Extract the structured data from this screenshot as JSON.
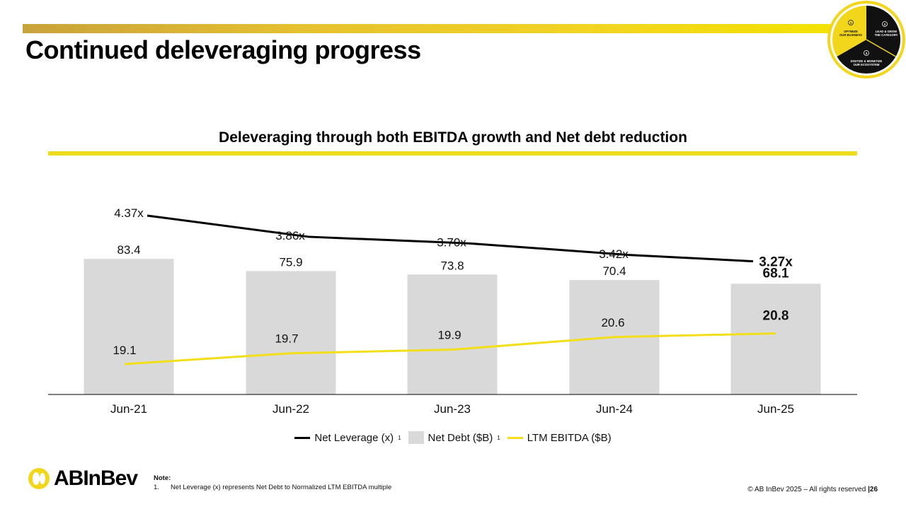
{
  "header": {
    "title": "Continued deleveraging progress"
  },
  "badge": {
    "segments": [
      {
        "num": "1",
        "text": [
          "OPTIMIZE",
          "OUR BUSINESS"
        ]
      },
      {
        "num": "2",
        "text": [
          "LEAD & GROW",
          "THE CATEGORY"
        ]
      },
      {
        "num": "3",
        "text": [
          "DIGITIZE & MONETIZE",
          "OUR ECOSYSTEM"
        ]
      }
    ],
    "colors": {
      "yellow": "#f2d61c",
      "dark": "#111111"
    }
  },
  "chart_data": {
    "type": "bar",
    "title": "Deleveraging through both EBITDA growth and Net debt reduction",
    "categories": [
      "Jun-21",
      "Jun-22",
      "Jun-23",
      "Jun-24",
      "Jun-25"
    ],
    "series": [
      {
        "name": "Net Debt ($B)",
        "kind": "bar",
        "values": [
          83.4,
          75.9,
          73.8,
          70.4,
          68.1
        ],
        "labels": [
          "83.4",
          "75.9",
          "73.8",
          "70.4",
          "68.1"
        ],
        "color": "#d9d9d9"
      },
      {
        "name": "LTM EBITDA ($B)",
        "kind": "line",
        "values": [
          19.1,
          19.7,
          19.9,
          20.6,
          20.8
        ],
        "labels": [
          "19.1",
          "19.7",
          "19.9",
          "20.6",
          "20.8"
        ],
        "color": "#f2df1a"
      },
      {
        "name": "Net Leverage (x)",
        "kind": "line",
        "values": [
          4.37,
          3.86,
          3.7,
          3.42,
          3.27
        ],
        "labels": [
          "4.37x",
          "3.86x",
          "3.70x",
          "3.42x",
          "3.27x"
        ],
        "color": "#000000"
      }
    ],
    "highlight_last": true,
    "ylim": [
      0,
      90
    ],
    "grid": false
  },
  "legend": {
    "leverage": "Net Leverage (x)",
    "debt": "Net Debt ($B)",
    "ebitda": "LTM EBITDA ($B)",
    "footnote_mark": "1"
  },
  "logo": {
    "text": "ABInBev"
  },
  "note": {
    "title": "Note:",
    "items": [
      {
        "num": "1.",
        "text": "Net Leverage (x) represents Net Debt to Normalized LTM EBITDA multiple"
      }
    ]
  },
  "footer": {
    "copyright": "© AB InBev 2025 – All rights reserved",
    "page": "|26"
  }
}
